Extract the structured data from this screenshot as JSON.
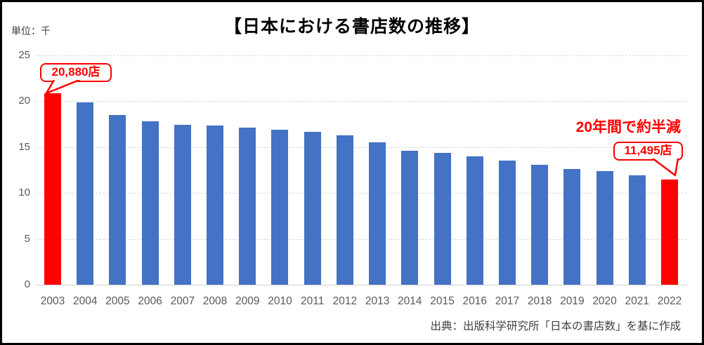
{
  "window": {
    "title": "【日本における書店数の推移】"
  },
  "unit_label": "単位：千",
  "annotation": "20年間で約半減",
  "callouts": {
    "first_label": "20,880店",
    "last_label": "11,495店"
  },
  "source": "出典：出版科学研究所「日本の書店数」を基に作成",
  "colors": {
    "bar_blue": "#4472C4",
    "bar_red": "#FF0000",
    "accent_red": "#FF0000",
    "axis_text": "#595959",
    "gridline": "#D9D9D9",
    "frame_border": "#000000"
  },
  "chart_data": {
    "type": "bar",
    "title": "【日本における書店数の推移】",
    "ylabel": "単位：千",
    "xlabel": "",
    "categories": [
      "2003",
      "2004",
      "2005",
      "2006",
      "2007",
      "2008",
      "2009",
      "2010",
      "2011",
      "2012",
      "2013",
      "2014",
      "2015",
      "2016",
      "2017",
      "2018",
      "2019",
      "2020",
      "2021",
      "2022"
    ],
    "values": [
      20.88,
      19.9,
      18.5,
      17.8,
      17.4,
      17.35,
      17.1,
      16.9,
      16.7,
      16.3,
      15.5,
      14.6,
      14.4,
      14.0,
      13.5,
      13.1,
      12.65,
      12.4,
      11.95,
      11.495
    ],
    "value_unit": "thousand stores",
    "highlighted_indices": [
      0,
      19
    ],
    "data_labels": {
      "2003": "20,880店",
      "2022": "11,495店"
    },
    "ylim": [
      0,
      25
    ],
    "yticks": [
      0,
      5,
      10,
      15,
      20,
      25
    ],
    "grid": true,
    "legend": false
  }
}
